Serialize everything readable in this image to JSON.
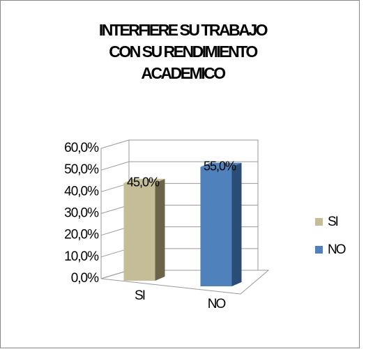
{
  "chart_data": {
    "type": "bar3d",
    "title": [
      "INTERFIERE SU TRABAJO",
      "CON SU RENDIMIENTO",
      "ACADEMICO"
    ],
    "categories": [
      "SI",
      "NO"
    ],
    "values": [
      45,
      55
    ],
    "value_labels": [
      "45,0%",
      "55,0%"
    ],
    "colors": [
      "#c4bd97",
      "#4f81bd"
    ],
    "side_colors": [
      "#6b6449",
      "#2b4c74"
    ],
    "ylim": [
      0,
      60
    ],
    "yticks": [
      {
        "value": 0,
        "label": "0,0%"
      },
      {
        "value": 10,
        "label": "10,0%"
      },
      {
        "value": 20,
        "label": "20,0%"
      },
      {
        "value": 30,
        "label": "30,0%"
      },
      {
        "value": 40,
        "label": "40,0%"
      },
      {
        "value": 50,
        "label": "50,0%"
      },
      {
        "value": 60,
        "label": "60,0%"
      }
    ],
    "grid": true,
    "legend": "right"
  }
}
